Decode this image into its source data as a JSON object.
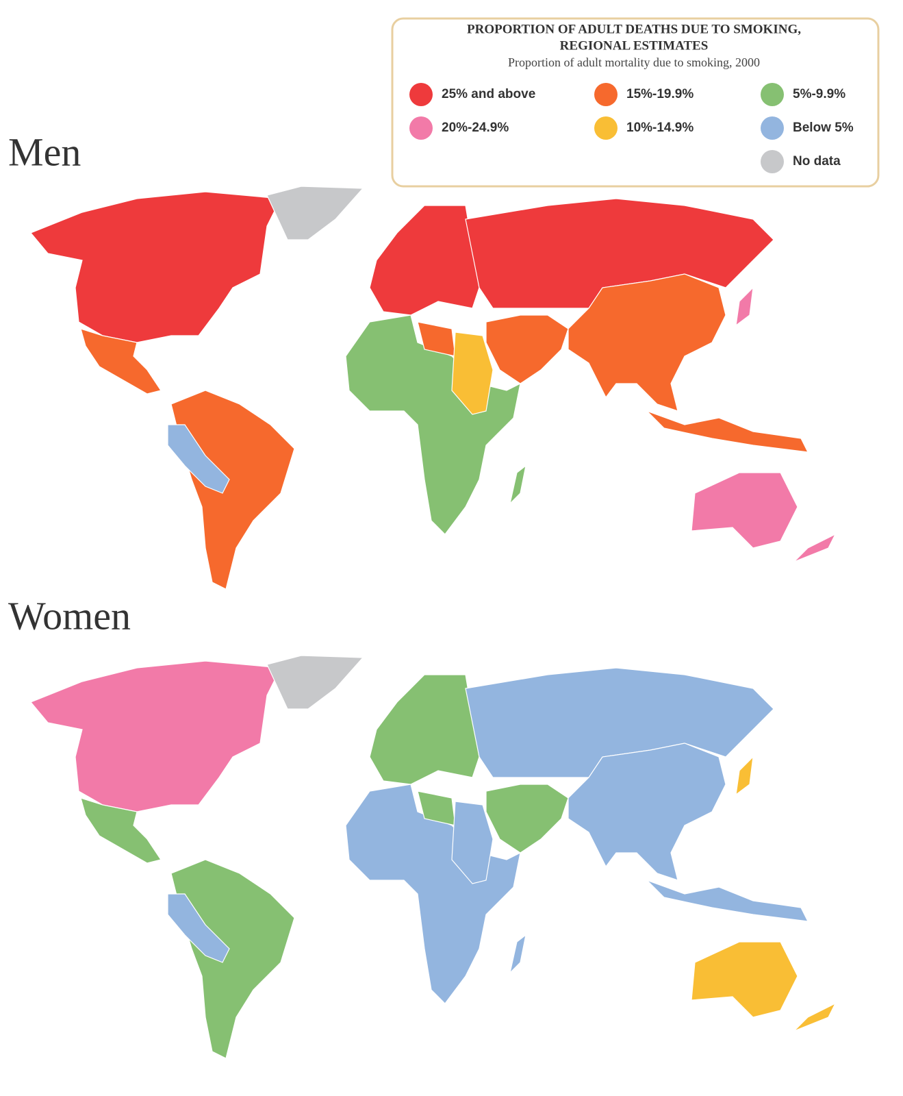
{
  "header": {
    "title_lines": [
      "PROPORTION OF ADULT DEATHS DUE TO SMOKING,",
      "REGIONAL ESTIMATES"
    ],
    "subtitle": "Proportion of  adult mortality due to smoking, 2000"
  },
  "legend": [
    {
      "label": "25% and above",
      "color": "#ee3a3c"
    },
    {
      "label": "20%-24.9%",
      "color": "#f27aa8"
    },
    {
      "label": "15%-19.9%",
      "color": "#f6692d"
    },
    {
      "label": "10%-14.9%",
      "color": "#f9be35"
    },
    {
      "label": "5%-9.9%",
      "color": "#86c072"
    },
    {
      "label": "Below 5%",
      "color": "#93b5df"
    },
    {
      "label": "No data",
      "color": "#c7c8ca"
    }
  ],
  "maps": [
    {
      "label": "Men",
      "regions": [
        0,
        6,
        2,
        2,
        5,
        0,
        0,
        4,
        2,
        3,
        2,
        2,
        1,
        1,
        1,
        2,
        4
      ]
    },
    {
      "label": "Women",
      "regions": [
        1,
        6,
        4,
        4,
        5,
        4,
        5,
        5,
        4,
        5,
        4,
        5,
        3,
        3,
        3,
        5,
        5
      ]
    }
  ]
}
